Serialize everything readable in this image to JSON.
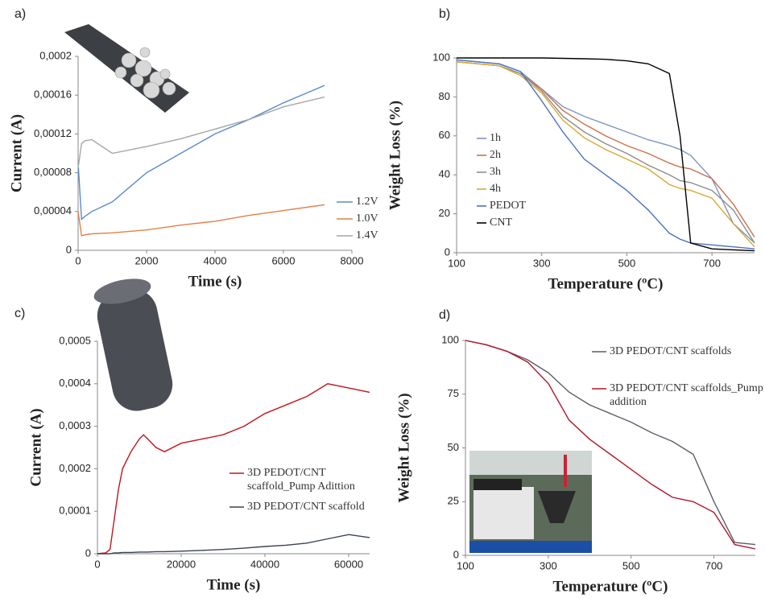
{
  "chart_data": [
    {
      "type": "line",
      "label": "a)",
      "x_label": "Time (s)",
      "y_label": "Current (A)",
      "x": [
        0,
        100,
        200,
        400,
        1000,
        2000,
        3000,
        4000,
        5000,
        6000,
        7200
      ],
      "xlim": [
        0,
        8000
      ],
      "xticks": [
        0,
        2000,
        4000,
        6000,
        8000
      ],
      "ylim": [
        0,
        0.0002
      ],
      "yticks": [
        0,
        {
          "value": 4e-05,
          "label": "0,00004"
        },
        {
          "value": 8e-05,
          "label": "0,00008"
        },
        {
          "value": 0.00012,
          "label": "0,00012"
        },
        {
          "value": 0.00016,
          "label": "0,00016"
        },
        {
          "value": 0.0002,
          "label": "0,0002"
        }
      ],
      "series": [
        {
          "name": "1.2V",
          "color": "#5b8bc9",
          "values": [
            9e-05,
            3.2e-05,
            3.5e-05,
            4e-05,
            5e-05,
            8e-05,
            0.0001,
            0.00012,
            0.000135,
            0.000152,
            0.00017
          ]
        },
        {
          "name": "1.0V",
          "color": "#e0814a",
          "values": [
            4e-05,
            1.5e-05,
            1.6e-05,
            1.7e-05,
            1.8e-05,
            2.1e-05,
            2.6e-05,
            3e-05,
            3.6e-05,
            4.1e-05,
            4.7e-05
          ]
        },
        {
          "name": "1.4V",
          "color": "#a6a6a6",
          "values": [
            8.5e-05,
            0.00011,
            0.000113,
            0.000114,
            0.0001,
            0.000107,
            0.000115,
            0.000125,
            0.000135,
            0.000148,
            0.000158
          ]
        }
      ]
    },
    {
      "type": "line",
      "label": "b)",
      "x_label": "Temperature (ºC)",
      "y_label": "Weight Loss (%)",
      "x": [
        100,
        200,
        250,
        300,
        350,
        400,
        450,
        500,
        550,
        600,
        625,
        650,
        700,
        750,
        800
      ],
      "xlim": [
        100,
        800
      ],
      "xticks": [
        100,
        300,
        500,
        700
      ],
      "ylim": [
        0,
        100
      ],
      "yticks": [
        0,
        20,
        40,
        60,
        80,
        100
      ],
      "series": [
        {
          "name": "1h",
          "color": "#7f95c4",
          "values": [
            99,
            97,
            93,
            84,
            75,
            70,
            66,
            62,
            58,
            55,
            53,
            50,
            38,
            15,
            5
          ]
        },
        {
          "name": "2h",
          "color": "#c9714a",
          "values": [
            98,
            96,
            92,
            84,
            73,
            66,
            60,
            55,
            51,
            46,
            44,
            43,
            38,
            25,
            8
          ]
        },
        {
          "name": "3h",
          "color": "#8c8c8c",
          "values": [
            98,
            96,
            92,
            83,
            70,
            62,
            56,
            51,
            45,
            40,
            37,
            36,
            32,
            22,
            5
          ]
        },
        {
          "name": "4h",
          "color": "#d9a830",
          "values": [
            98,
            96,
            91,
            82,
            68,
            59,
            53,
            48,
            43,
            35,
            33,
            32,
            28,
            15,
            3
          ]
        },
        {
          "name": "PEDOT",
          "color": "#4a72c0",
          "values": [
            99,
            97,
            93,
            78,
            62,
            48,
            40,
            32,
            22,
            10,
            7,
            5,
            4,
            3,
            2
          ]
        },
        {
          "name": "CNT",
          "color": "#000000",
          "values": [
            100,
            100,
            100,
            100,
            99.8,
            99.6,
            99.3,
            98.5,
            97,
            92,
            60,
            5,
            2,
            1.5,
            1
          ]
        }
      ]
    },
    {
      "type": "line",
      "label": "c)",
      "x_label": "Time (s)",
      "y_label": "Current (A)",
      "x": [
        0,
        2000,
        3000,
        4000,
        5000,
        6000,
        8000,
        10000,
        11000,
        12000,
        14000,
        16000,
        20000,
        25000,
        30000,
        35000,
        40000,
        45000,
        50000,
        55000,
        60000,
        65000
      ],
      "xlim": [
        0,
        65000
      ],
      "xticks": [
        0,
        20000,
        40000,
        60000
      ],
      "ylim": [
        0,
        0.0005
      ],
      "yticks": [
        0,
        {
          "value": 0.0001,
          "label": "0,0001"
        },
        {
          "value": 0.0002,
          "label": "0,0002"
        },
        {
          "value": 0.0003,
          "label": "0,0003"
        },
        {
          "value": 0.0004,
          "label": "0,0004"
        },
        {
          "value": 0.0005,
          "label": "0,0005"
        }
      ],
      "series": [
        {
          "name": "3D PEDOT/CNT scaffold_Pump Adittion",
          "color": "#c0161b",
          "values": [
            0,
            2e-06,
            1e-05,
            8e-05,
            0.00015,
            0.0002,
            0.00024,
            0.00027,
            0.00028,
            0.00027,
            0.00025,
            0.00024,
            0.00026,
            0.00027,
            0.00028,
            0.0003,
            0.00033,
            0.00035,
            0.00037,
            0.0004,
            0.00039,
            0.00038
          ]
        },
        {
          "name": "3D PEDOT/CNT scaffold",
          "color": "#3a4454",
          "values": [
            0,
            0,
            0,
            2e-06,
            2e-06,
            3e-06,
            3e-06,
            4e-06,
            4e-06,
            4e-06,
            5e-06,
            5e-06,
            6e-06,
            8e-06,
            1e-05,
            1.3e-05,
            1.7e-05,
            2e-05,
            2.5e-05,
            3.5e-05,
            4.5e-05,
            3.8e-05
          ]
        }
      ]
    },
    {
      "type": "line",
      "label": "d)",
      "x_label": "Temperature (ºC)",
      "y_label": "Weight Loss (%)",
      "x": [
        100,
        150,
        200,
        250,
        300,
        350,
        400,
        450,
        500,
        550,
        600,
        650,
        700,
        750,
        800
      ],
      "xlim": [
        100,
        800
      ],
      "xticks": [
        100,
        300,
        500,
        700
      ],
      "ylim": [
        0,
        100
      ],
      "yticks": [
        0,
        25,
        50,
        75,
        100
      ],
      "series": [
        {
          "name": "3D PEDOT/CNT scaffolds",
          "color": "#5a5f6a",
          "values": [
            100,
            98,
            95,
            91,
            85,
            76,
            70,
            66,
            62,
            57,
            53,
            47,
            25,
            6,
            5
          ]
        },
        {
          "name": "3D PEDOT/CNT scaffolds_Pump addition",
          "color": "#b3162a",
          "values": [
            100,
            98,
            95,
            90,
            80,
            63,
            54,
            47,
            40,
            33,
            27,
            25,
            20,
            5,
            3
          ]
        }
      ]
    }
  ]
}
